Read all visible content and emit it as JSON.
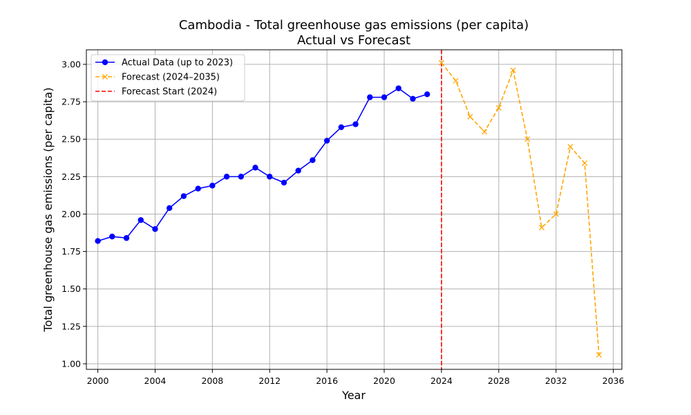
{
  "chart_data": {
    "type": "line",
    "title": "Cambodia - Total greenhouse gas emissions (per capita)",
    "subtitle": "Actual vs Forecast",
    "xlabel": "Year",
    "ylabel": "Total greenhouse gas emissions (per capita)",
    "xlim": [
      1999.2,
      2036.6
    ],
    "ylim": [
      0.963,
      3.097
    ],
    "x_ticks": [
      2000,
      2004,
      2008,
      2012,
      2016,
      2020,
      2024,
      2028,
      2032,
      2036
    ],
    "y_ticks": [
      1.0,
      1.25,
      1.5,
      1.75,
      2.0,
      2.25,
      2.5,
      2.75,
      3.0
    ],
    "y_tick_labels": [
      "1.00",
      "1.25",
      "1.50",
      "1.75",
      "2.00",
      "2.25",
      "2.50",
      "2.75",
      "3.00"
    ],
    "grid": true,
    "legend_position": "top-left",
    "series": [
      {
        "name": "Actual Data (up to 2023)",
        "color": "#0000ff",
        "line_style": "solid",
        "marker": "circle",
        "x": [
          2000,
          2001,
          2002,
          2003,
          2004,
          2005,
          2006,
          2007,
          2008,
          2009,
          2010,
          2011,
          2012,
          2013,
          2014,
          2015,
          2016,
          2017,
          2018,
          2019,
          2020,
          2021,
          2022,
          2023
        ],
        "y": [
          1.82,
          1.85,
          1.84,
          1.96,
          1.9,
          2.04,
          2.12,
          2.17,
          2.19,
          2.25,
          2.25,
          2.31,
          2.25,
          2.21,
          2.29,
          2.36,
          2.49,
          2.58,
          2.6,
          2.78,
          2.78,
          2.84,
          2.77,
          2.8
        ]
      },
      {
        "name": "Forecast (2024–2035)",
        "color": "#ffa500",
        "line_style": "dashed",
        "marker": "x",
        "x": [
          2024,
          2025,
          2026,
          2027,
          2028,
          2029,
          2030,
          2031,
          2032,
          2033,
          2034,
          2035
        ],
        "y": [
          3.01,
          2.89,
          2.65,
          2.55,
          2.71,
          2.96,
          2.5,
          1.91,
          2.0,
          2.45,
          2.34,
          1.06
        ]
      }
    ],
    "vline": {
      "name": "Forecast Start (2024)",
      "x": 2024,
      "color": "#ff0000",
      "line_style": "dashed"
    }
  }
}
